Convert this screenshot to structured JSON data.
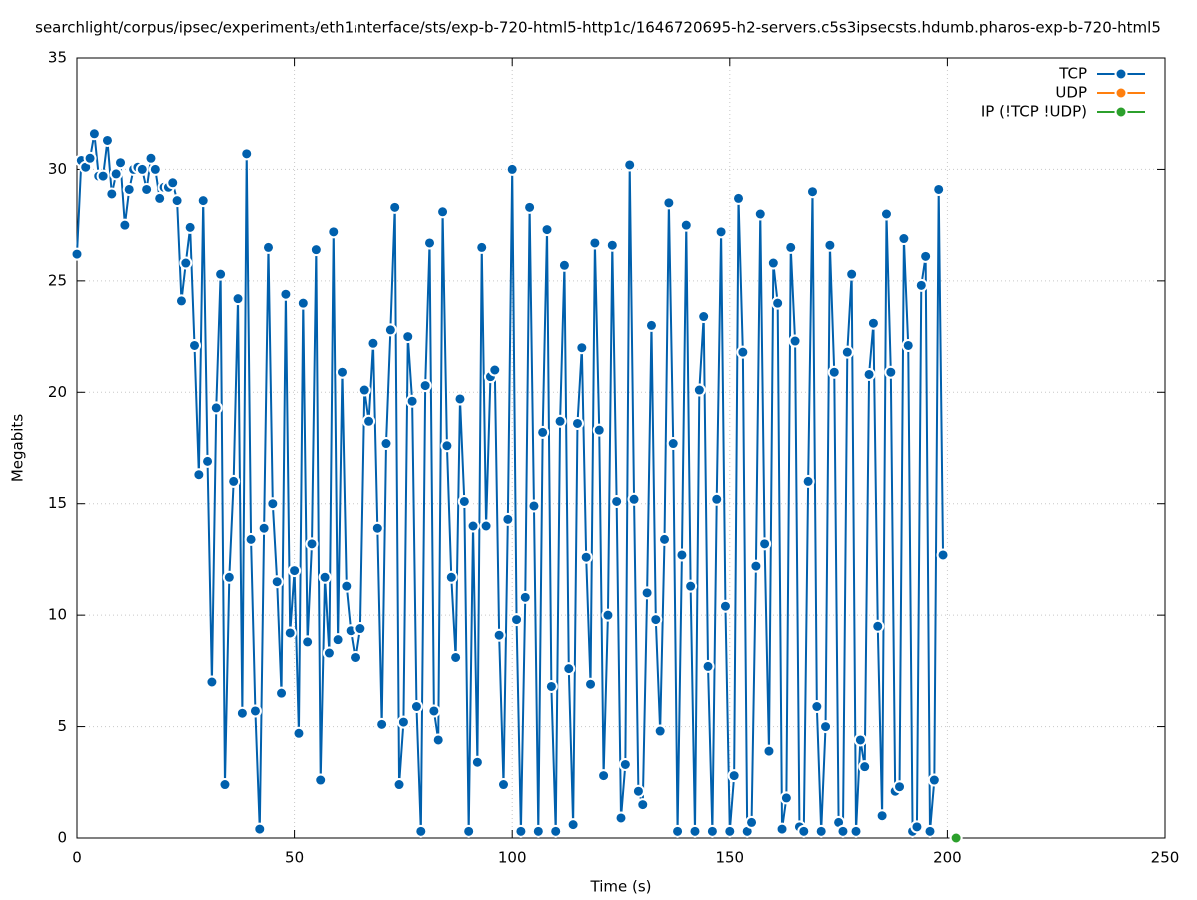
{
  "chart_data": {
    "type": "line",
    "title": "searchlight/corpus/ipsec/experiment₃/eth1ᵢnterface/sts/exp-b-720-html5-http1c/1646720695-h2-servers.c5s3ipsecsts.hdumb.pharos-exp-b-720-html5",
    "x_label": "Time (s)",
    "y_label": "Megabits",
    "xlim": [
      0,
      250
    ],
    "xticks": [
      0,
      50,
      100,
      150,
      200,
      250
    ],
    "ylim": [
      0,
      35
    ],
    "yticks": [
      0,
      5,
      10,
      15,
      20,
      25,
      30,
      35
    ],
    "grid": true,
    "legend": "top-right",
    "series": [
      {
        "name": "TCP",
        "color": "#0060ad",
        "x": [
          0,
          1,
          2,
          3,
          4,
          5,
          6,
          7,
          8,
          9,
          10,
          11,
          12,
          13,
          14,
          15,
          16,
          17,
          18,
          19,
          20,
          21,
          22,
          23,
          24,
          25,
          26,
          27,
          28,
          29,
          30,
          31,
          32,
          33,
          34,
          35,
          36,
          37,
          38,
          39,
          40,
          41,
          42,
          43,
          44,
          45,
          46,
          47,
          48,
          49,
          50,
          51,
          52,
          53,
          54,
          55,
          56,
          57,
          58,
          59,
          60,
          61,
          62,
          63,
          64,
          65,
          66,
          67,
          68,
          69,
          70,
          71,
          72,
          73,
          74,
          75,
          76,
          77,
          78,
          79,
          80,
          81,
          82,
          83,
          84,
          85,
          86,
          87,
          88,
          89,
          90,
          91,
          92,
          93,
          94,
          95,
          96,
          97,
          98,
          99,
          100,
          101,
          102,
          103,
          104,
          105,
          106,
          107,
          108,
          109,
          110,
          111,
          112,
          113,
          114,
          115,
          116,
          117,
          118,
          119,
          120,
          121,
          122,
          123,
          124,
          125,
          126,
          127,
          128,
          129,
          130,
          131,
          132,
          133,
          134,
          135,
          136,
          137,
          138,
          139,
          140,
          141,
          142,
          143,
          144,
          145,
          146,
          147,
          148,
          149,
          150,
          151,
          152,
          153,
          154,
          155,
          156,
          157,
          158,
          159,
          160,
          161,
          162,
          163,
          164,
          165,
          166,
          167,
          168,
          169,
          170,
          171,
          172,
          173,
          174,
          175,
          176,
          177,
          178,
          179,
          180,
          181,
          182,
          183,
          184,
          185,
          186,
          187,
          188,
          189,
          190,
          191,
          192,
          193,
          194,
          195,
          196,
          197,
          198,
          199
        ],
        "values": [
          26.2,
          30.4,
          30.1,
          30.5,
          31.6,
          29.7,
          29.7,
          31.3,
          28.9,
          29.8,
          30.3,
          27.5,
          29.1,
          30.0,
          30.1,
          30.0,
          29.1,
          30.5,
          30.0,
          28.7,
          29.2,
          29.2,
          29.4,
          28.6,
          24.1,
          25.8,
          27.4,
          22.1,
          16.3,
          28.6,
          16.9,
          7.0,
          19.3,
          25.3,
          2.4,
          11.7,
          16.0,
          24.2,
          5.6,
          30.7,
          13.4,
          5.7,
          0.4,
          13.9,
          26.5,
          15.0,
          11.5,
          6.5,
          24.4,
          9.2,
          12.0,
          4.7,
          24.0,
          8.8,
          13.2,
          26.4,
          2.6,
          11.7,
          8.3,
          27.2,
          8.9,
          20.9,
          11.3,
          9.3,
          8.1,
          9.4,
          20.1,
          18.7,
          22.2,
          13.9,
          5.1,
          17.7,
          22.8,
          28.3,
          2.4,
          5.2,
          22.5,
          19.6,
          5.9,
          0.3,
          20.3,
          26.7,
          5.7,
          4.4,
          28.1,
          17.6,
          11.7,
          8.1,
          19.7,
          15.1,
          0.3,
          14.0,
          3.4,
          26.5,
          14.0,
          20.7,
          21.0,
          9.1,
          2.4,
          14.3,
          30.0,
          9.8,
          0.3,
          10.8,
          28.3,
          14.9,
          0.3,
          18.2,
          27.3,
          6.8,
          0.3,
          18.7,
          25.7,
          7.6,
          0.6,
          18.6,
          22.0,
          12.6,
          6.9,
          26.7,
          18.3,
          2.8,
          10.0,
          26.6,
          15.1,
          0.9,
          3.3,
          30.2,
          15.2,
          2.1,
          1.5,
          11.0,
          23.0,
          9.8,
          4.8,
          13.4,
          28.5,
          17.7,
          0.3,
          12.7,
          27.5,
          11.3,
          0.3,
          20.1,
          23.4,
          7.7,
          0.3,
          15.2,
          27.2,
          10.4,
          0.3,
          2.8,
          28.7,
          21.8,
          0.3,
          0.7,
          12.2,
          28.0,
          13.2,
          3.9,
          25.8,
          24.0,
          0.4,
          1.8,
          26.5,
          22.3,
          0.5,
          0.3,
          16.0,
          29.0,
          5.9,
          0.3,
          5.0,
          26.6,
          20.9,
          0.7,
          0.3,
          21.8,
          25.3,
          0.3,
          4.4,
          3.2,
          20.8,
          23.1,
          9.5,
          1.0,
          28.0,
          20.9,
          2.1,
          2.3,
          26.9,
          22.1,
          0.3,
          0.5,
          24.8,
          26.1,
          0.3,
          2.6,
          29.1,
          12.7
        ]
      },
      {
        "name": "UDP",
        "color": "#ff7f0e",
        "x": [
          202
        ],
        "values": [
          0
        ]
      },
      {
        "name": "IP (!TCP  !UDP)",
        "color": "#2ca02c",
        "x": [
          202
        ],
        "values": [
          0
        ]
      }
    ]
  }
}
